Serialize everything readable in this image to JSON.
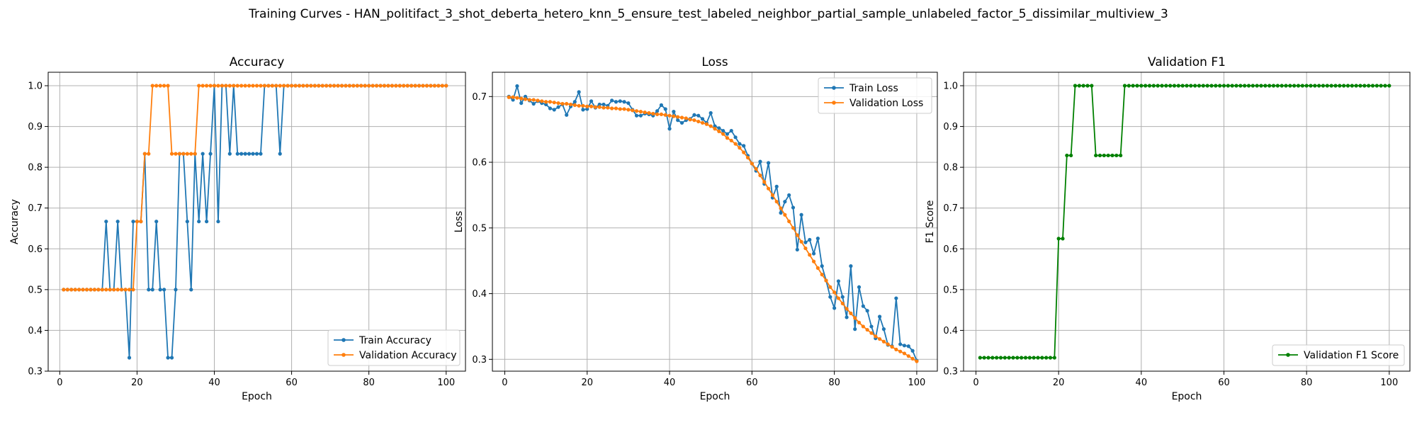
{
  "figure": {
    "suptitle": "Training Curves - HAN_politifact_3_shot_deberta_hetero_knn_5_ensure_test_labeled_neighbor_partial_sample_unlabeled_factor_5_dissimilar_multiview_3"
  },
  "colors": {
    "blue": "#1f77b4",
    "orange": "#ff7f0e",
    "green": "#008000",
    "grid": "#b0b0b0"
  },
  "chart_data": [
    {
      "type": "line",
      "title": "Accuracy",
      "xlabel": "Epoch",
      "ylabel": "Accuracy",
      "xlim": [
        -3,
        105
      ],
      "ylim": [
        0.3,
        1.033
      ],
      "xticks": [
        0,
        20,
        40,
        60,
        80,
        100
      ],
      "yticks": [
        0.3,
        0.4,
        0.5,
        0.6,
        0.7,
        0.8,
        0.9,
        1.0
      ],
      "grid": true,
      "legend_position": "lower-right",
      "x": [
        1,
        2,
        3,
        4,
        5,
        6,
        7,
        8,
        9,
        10,
        11,
        12,
        13,
        14,
        15,
        16,
        17,
        18,
        19,
        20,
        21,
        22,
        23,
        24,
        25,
        26,
        27,
        28,
        29,
        30,
        31,
        32,
        33,
        34,
        35,
        36,
        37,
        38,
        39,
        40,
        41,
        42,
        43,
        44,
        45,
        46,
        47,
        48,
        49,
        50,
        51,
        52,
        53,
        54,
        55,
        56,
        57,
        58,
        59,
        60,
        61,
        62,
        63,
        64,
        65,
        66,
        67,
        68,
        69,
        70,
        71,
        72,
        73,
        74,
        75,
        76,
        77,
        78,
        79,
        80,
        81,
        82,
        83,
        84,
        85,
        86,
        87,
        88,
        89,
        90,
        91,
        92,
        93,
        94,
        95,
        96,
        97,
        98,
        99,
        100
      ],
      "series": [
        {
          "name": "Train Accuracy",
          "color": "#1f77b4",
          "values": [
            0.5,
            0.5,
            0.5,
            0.5,
            0.5,
            0.5,
            0.5,
            0.5,
            0.5,
            0.5,
            0.5,
            0.667,
            0.5,
            0.5,
            0.667,
            0.5,
            0.5,
            0.333,
            0.667,
            0.667,
            0.667,
            0.833,
            0.5,
            0.5,
            0.667,
            0.5,
            0.5,
            0.333,
            0.333,
            0.5,
            0.833,
            0.833,
            0.667,
            0.5,
            0.833,
            0.667,
            0.833,
            0.667,
            0.833,
            1.0,
            0.667,
            1.0,
            1.0,
            0.833,
            1.0,
            0.833,
            0.833,
            0.833,
            0.833,
            0.833,
            0.833,
            0.833,
            1.0,
            1.0,
            1.0,
            1.0,
            0.833,
            1.0,
            1.0,
            1.0,
            1.0,
            1.0,
            1.0,
            1.0,
            1.0,
            1.0,
            1.0,
            1.0,
            1.0,
            1.0,
            1.0,
            1.0,
            1.0,
            1.0,
            1.0,
            1.0,
            1.0,
            1.0,
            1.0,
            1.0,
            1.0,
            1.0,
            1.0,
            1.0,
            1.0,
            1.0,
            1.0,
            1.0,
            1.0,
            1.0,
            1.0,
            1.0,
            1.0,
            1.0,
            1.0,
            1.0,
            1.0,
            1.0,
            1.0,
            1.0
          ]
        },
        {
          "name": "Validation Accuracy",
          "color": "#ff7f0e",
          "values": [
            0.5,
            0.5,
            0.5,
            0.5,
            0.5,
            0.5,
            0.5,
            0.5,
            0.5,
            0.5,
            0.5,
            0.5,
            0.5,
            0.5,
            0.5,
            0.5,
            0.5,
            0.5,
            0.5,
            0.667,
            0.667,
            0.833,
            0.833,
            1.0,
            1.0,
            1.0,
            1.0,
            1.0,
            0.833,
            0.833,
            0.833,
            0.833,
            0.833,
            0.833,
            0.833,
            1.0,
            1.0,
            1.0,
            1.0,
            1.0,
            1.0,
            1.0,
            1.0,
            1.0,
            1.0,
            1.0,
            1.0,
            1.0,
            1.0,
            1.0,
            1.0,
            1.0,
            1.0,
            1.0,
            1.0,
            1.0,
            1.0,
            1.0,
            1.0,
            1.0,
            1.0,
            1.0,
            1.0,
            1.0,
            1.0,
            1.0,
            1.0,
            1.0,
            1.0,
            1.0,
            1.0,
            1.0,
            1.0,
            1.0,
            1.0,
            1.0,
            1.0,
            1.0,
            1.0,
            1.0,
            1.0,
            1.0,
            1.0,
            1.0,
            1.0,
            1.0,
            1.0,
            1.0,
            1.0,
            1.0,
            1.0,
            1.0,
            1.0,
            1.0,
            1.0,
            1.0,
            1.0,
            1.0,
            1.0,
            1.0
          ]
        }
      ]
    },
    {
      "type": "line",
      "title": "Loss",
      "xlabel": "Epoch",
      "ylabel": "Loss",
      "xlim": [
        -3,
        105
      ],
      "ylim": [
        0.282,
        0.737
      ],
      "xticks": [
        0,
        20,
        40,
        60,
        80,
        100
      ],
      "yticks": [
        0.3,
        0.4,
        0.5,
        0.6,
        0.7
      ],
      "grid": true,
      "legend_position": "upper-right",
      "x": [
        1,
        2,
        3,
        4,
        5,
        6,
        7,
        8,
        9,
        10,
        11,
        12,
        13,
        14,
        15,
        16,
        17,
        18,
        19,
        20,
        21,
        22,
        23,
        24,
        25,
        26,
        27,
        28,
        29,
        30,
        31,
        32,
        33,
        34,
        35,
        36,
        37,
        38,
        39,
        40,
        41,
        42,
        43,
        44,
        45,
        46,
        47,
        48,
        49,
        50,
        51,
        52,
        53,
        54,
        55,
        56,
        57,
        58,
        59,
        60,
        61,
        62,
        63,
        64,
        65,
        66,
        67,
        68,
        69,
        70,
        71,
        72,
        73,
        74,
        75,
        76,
        77,
        78,
        79,
        80,
        81,
        82,
        83,
        84,
        85,
        86,
        87,
        88,
        89,
        90,
        91,
        92,
        93,
        94,
        95,
        96,
        97,
        98,
        99,
        100
      ],
      "series": [
        {
          "name": "Train Loss",
          "color": "#1f77b4",
          "values": [
            0.7,
            0.695,
            0.716,
            0.69,
            0.7,
            0.694,
            0.689,
            0.693,
            0.69,
            0.688,
            0.682,
            0.68,
            0.684,
            0.688,
            0.672,
            0.685,
            0.692,
            0.707,
            0.68,
            0.681,
            0.693,
            0.683,
            0.688,
            0.688,
            0.686,
            0.694,
            0.692,
            0.693,
            0.692,
            0.69,
            0.68,
            0.671,
            0.671,
            0.674,
            0.673,
            0.671,
            0.678,
            0.687,
            0.681,
            0.651,
            0.677,
            0.664,
            0.66,
            0.664,
            0.666,
            0.672,
            0.671,
            0.666,
            0.66,
            0.675,
            0.655,
            0.652,
            0.648,
            0.643,
            0.648,
            0.638,
            0.628,
            0.625,
            0.61,
            0.598,
            0.587,
            0.601,
            0.567,
            0.599,
            0.546,
            0.563,
            0.523,
            0.54,
            0.55,
            0.531,
            0.467,
            0.52,
            0.478,
            0.482,
            0.461,
            0.484,
            0.442,
            0.42,
            0.395,
            0.378,
            0.419,
            0.395,
            0.364,
            0.442,
            0.346,
            0.41,
            0.381,
            0.374,
            0.35,
            0.332,
            0.365,
            0.346,
            0.322,
            0.32,
            0.393,
            0.323,
            0.321,
            0.32,
            0.313,
            0.298
          ]
        },
        {
          "name": "Validation Loss",
          "color": "#ff7f0e",
          "values": [
            0.699,
            0.699,
            0.698,
            0.697,
            0.696,
            0.695,
            0.695,
            0.694,
            0.693,
            0.692,
            0.692,
            0.691,
            0.69,
            0.689,
            0.689,
            0.688,
            0.687,
            0.686,
            0.686,
            0.685,
            0.685,
            0.684,
            0.684,
            0.683,
            0.683,
            0.682,
            0.682,
            0.681,
            0.681,
            0.68,
            0.679,
            0.678,
            0.677,
            0.676,
            0.675,
            0.674,
            0.673,
            0.673,
            0.672,
            0.671,
            0.67,
            0.669,
            0.668,
            0.667,
            0.665,
            0.664,
            0.662,
            0.66,
            0.658,
            0.655,
            0.651,
            0.647,
            0.643,
            0.637,
            0.633,
            0.628,
            0.622,
            0.615,
            0.607,
            0.598,
            0.59,
            0.58,
            0.57,
            0.56,
            0.55,
            0.54,
            0.53,
            0.52,
            0.51,
            0.5,
            0.489,
            0.479,
            0.469,
            0.459,
            0.449,
            0.439,
            0.429,
            0.42,
            0.41,
            0.402,
            0.393,
            0.385,
            0.377,
            0.37,
            0.363,
            0.356,
            0.35,
            0.345,
            0.34,
            0.335,
            0.331,
            0.327,
            0.323,
            0.319,
            0.315,
            0.312,
            0.309,
            0.305,
            0.301,
            0.297
          ]
        }
      ]
    },
    {
      "type": "line",
      "title": "Validation F1",
      "xlabel": "Epoch",
      "ylabel": "F1 Score",
      "xlim": [
        -3,
        105
      ],
      "ylim": [
        0.3,
        1.033
      ],
      "xticks": [
        0,
        20,
        40,
        60,
        80,
        100
      ],
      "yticks": [
        0.3,
        0.4,
        0.5,
        0.6,
        0.7,
        0.8,
        0.9,
        1.0
      ],
      "grid": true,
      "legend_position": "lower-right",
      "x": [
        1,
        2,
        3,
        4,
        5,
        6,
        7,
        8,
        9,
        10,
        11,
        12,
        13,
        14,
        15,
        16,
        17,
        18,
        19,
        20,
        21,
        22,
        23,
        24,
        25,
        26,
        27,
        28,
        29,
        30,
        31,
        32,
        33,
        34,
        35,
        36,
        37,
        38,
        39,
        40,
        41,
        42,
        43,
        44,
        45,
        46,
        47,
        48,
        49,
        50,
        51,
        52,
        53,
        54,
        55,
        56,
        57,
        58,
        59,
        60,
        61,
        62,
        63,
        64,
        65,
        66,
        67,
        68,
        69,
        70,
        71,
        72,
        73,
        74,
        75,
        76,
        77,
        78,
        79,
        80,
        81,
        82,
        83,
        84,
        85,
        86,
        87,
        88,
        89,
        90,
        91,
        92,
        93,
        94,
        95,
        96,
        97,
        98,
        99,
        100
      ],
      "series": [
        {
          "name": "Validation F1 Score",
          "color": "#008000",
          "values": [
            0.333,
            0.333,
            0.333,
            0.333,
            0.333,
            0.333,
            0.333,
            0.333,
            0.333,
            0.333,
            0.333,
            0.333,
            0.333,
            0.333,
            0.333,
            0.333,
            0.333,
            0.333,
            0.333,
            0.625,
            0.625,
            0.829,
            0.829,
            1.0,
            1.0,
            1.0,
            1.0,
            1.0,
            0.829,
            0.829,
            0.829,
            0.829,
            0.829,
            0.829,
            0.829,
            1.0,
            1.0,
            1.0,
            1.0,
            1.0,
            1.0,
            1.0,
            1.0,
            1.0,
            1.0,
            1.0,
            1.0,
            1.0,
            1.0,
            1.0,
            1.0,
            1.0,
            1.0,
            1.0,
            1.0,
            1.0,
            1.0,
            1.0,
            1.0,
            1.0,
            1.0,
            1.0,
            1.0,
            1.0,
            1.0,
            1.0,
            1.0,
            1.0,
            1.0,
            1.0,
            1.0,
            1.0,
            1.0,
            1.0,
            1.0,
            1.0,
            1.0,
            1.0,
            1.0,
            1.0,
            1.0,
            1.0,
            1.0,
            1.0,
            1.0,
            1.0,
            1.0,
            1.0,
            1.0,
            1.0,
            1.0,
            1.0,
            1.0,
            1.0,
            1.0,
            1.0,
            1.0,
            1.0,
            1.0,
            1.0
          ]
        }
      ]
    }
  ]
}
